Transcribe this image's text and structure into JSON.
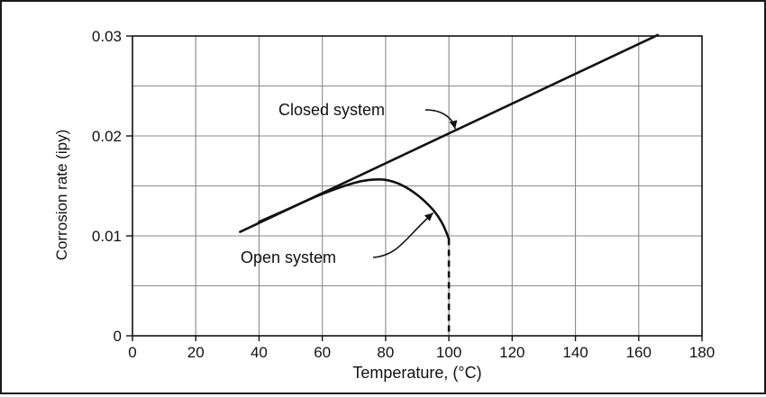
{
  "chart_data": {
    "type": "line",
    "title": "",
    "xlabel": "Temperature, (°C)",
    "ylabel": "Corrosion rate (ipy)",
    "xlim": [
      0,
      180
    ],
    "ylim": [
      0,
      0.03
    ],
    "x_ticks": [
      0,
      20,
      40,
      60,
      80,
      100,
      120,
      140,
      160,
      180
    ],
    "x_tick_labels": [
      "0",
      "20",
      "40",
      "60",
      "80",
      "100",
      "120",
      "140",
      "160",
      "180"
    ],
    "y_ticks": [
      0,
      0.01,
      0.02,
      0.03
    ],
    "y_tick_labels": [
      "0",
      "0.01",
      "0.02",
      "0.03"
    ],
    "grid": true,
    "grid_step_x": 20,
    "grid_step_y": 0.005,
    "series": [
      {
        "name": "Closed system",
        "x": [
          34,
          166
        ],
        "y": [
          0.0104,
          0.0301
        ]
      },
      {
        "name": "Open system",
        "x": [
          40,
          50,
          60,
          70,
          75,
          80,
          85,
          90,
          95,
          98,
          100
        ],
        "y": [
          0.0114,
          0.0128,
          0.0142,
          0.0153,
          0.0156,
          0.0156,
          0.0151,
          0.0141,
          0.0126,
          0.0112,
          0.0097
        ]
      }
    ],
    "drop_line": {
      "x": 100,
      "y_from": 0.0097,
      "y_to": 0,
      "style": "dashed"
    },
    "annotations": [
      {
        "text": "Closed system",
        "points_to_series": "Closed system",
        "target_x": 102,
        "target_y": 0.0207
      },
      {
        "text": "Open system",
        "points_to_series": "Open system",
        "target_x": 95,
        "target_y": 0.0123
      }
    ],
    "colors": {
      "line": "#111111",
      "grid": "#8a8a8a",
      "text": "#111111"
    }
  }
}
